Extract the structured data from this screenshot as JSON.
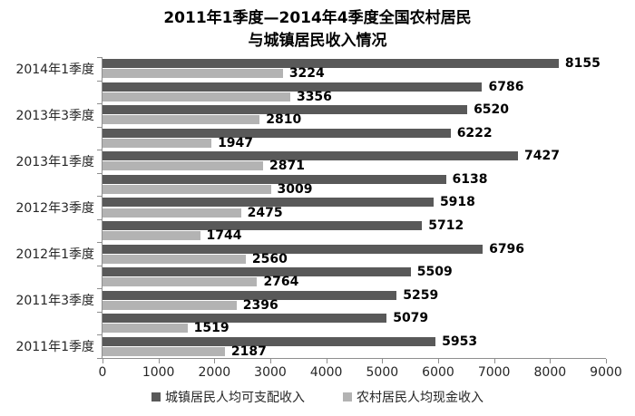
{
  "chart_data": {
    "type": "bar",
    "orientation": "horizontal",
    "title_lines": [
      "2011年1季度—2014年4季度全国农村居民",
      "与城镇居民收入情况"
    ],
    "y_axis_visible_labels": [
      "2014年1季度",
      "2013年3季度",
      "2013年1季度",
      "2012年3季度",
      "2012年1季度",
      "2011年3季度",
      "2011年1季度"
    ],
    "row_count": 13,
    "series": [
      {
        "name": "城镇居民人均可支配收入",
        "color": "#595959",
        "values": [
          8155,
          6786,
          6520,
          6222,
          7427,
          6138,
          5918,
          5712,
          6796,
          5509,
          5259,
          5079,
          5953
        ]
      },
      {
        "name": "农村居民人均现金收入",
        "color": "#b3b3b3",
        "values": [
          3224,
          3356,
          2810,
          1947,
          2871,
          3009,
          2475,
          1744,
          2560,
          2764,
          2396,
          1519,
          2187
        ]
      }
    ],
    "x_ticks": [
      0,
      1000,
      2000,
      3000,
      4000,
      5000,
      6000,
      7000,
      8000,
      9000
    ],
    "xlim": [
      0,
      9000
    ],
    "grid": false,
    "legend_position": "bottom",
    "axis_color": "#8e8e8e",
    "background_color": "#ffffff"
  }
}
